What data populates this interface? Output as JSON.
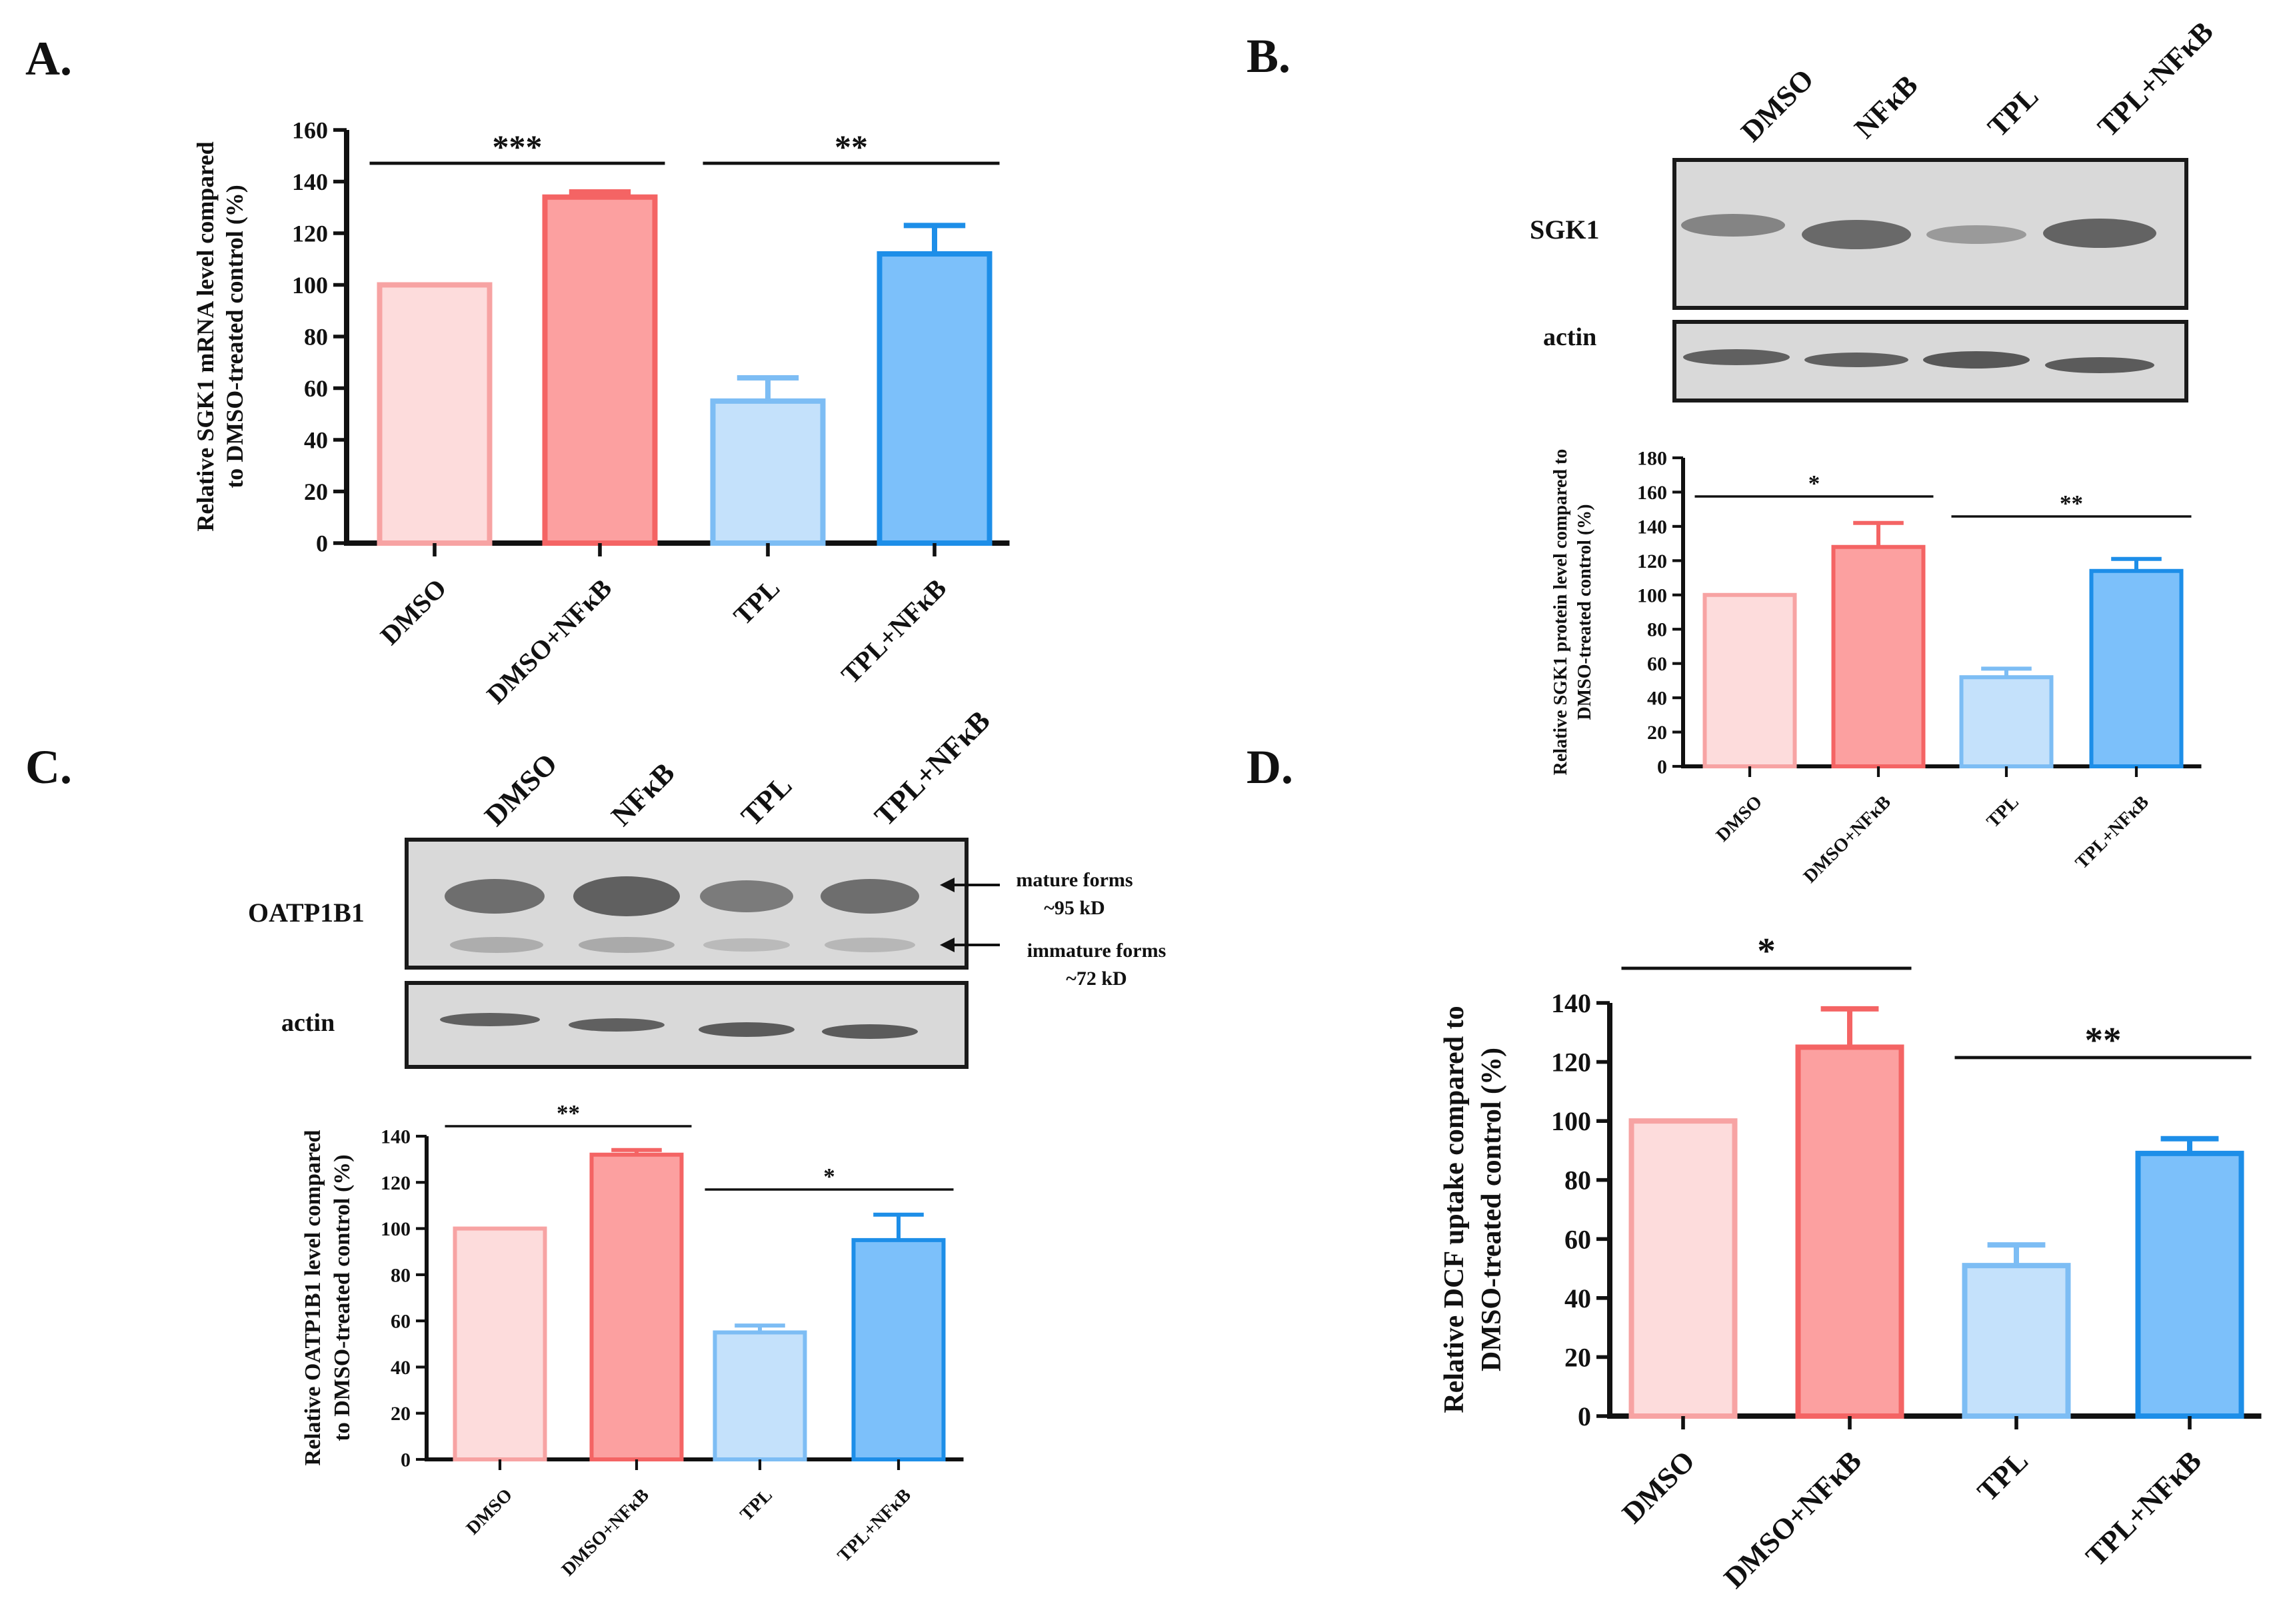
{
  "panels": {
    "A": {
      "letter": "A."
    },
    "B": {
      "letter": "B."
    },
    "C": {
      "letter": "C."
    },
    "D": {
      "letter": "D."
    }
  },
  "blots": {
    "B": {
      "lanes": [
        "DMSO",
        "NFκB",
        "TPL",
        "TPL+NFκB"
      ],
      "rows": [
        "SGK1",
        "actin"
      ]
    },
    "C": {
      "lanes": [
        "DMSO",
        "NFκB",
        "TPL",
        "TPL+NFκB"
      ],
      "rows": [
        "OATP1B1",
        "actin"
      ],
      "annotations": {
        "mature_line1": "mature forms",
        "mature_line2": "~95 kD",
        "immature_line1": "immature forms",
        "immature_line2": "~72 kD"
      }
    }
  },
  "colors": {
    "dmso_fill": "#fddcdc",
    "dmso_edge": "#f7a3a3",
    "nfkb_fill": "#fca0a0",
    "nfkb_edge": "#f46464",
    "tpl_fill": "#c4e1fb",
    "tpl_edge": "#7dbdf4",
    "tplnfkb_fill": "#7cc0fa",
    "tplnfkb_edge": "#1d8ee8"
  },
  "chart_data": [
    {
      "id": "A",
      "type": "bar",
      "categories": [
        "DMSO",
        "DMSO+NFκB",
        "TPL",
        "TPL+NFκB"
      ],
      "values": [
        100,
        134,
        55,
        112
      ],
      "errors": [
        0,
        2,
        9,
        11
      ],
      "ylabel_line1": "Relative SGK1 mRNA level compared",
      "ylabel_line2": "to DMSO-treated control (%)",
      "ylim": [
        0,
        160
      ],
      "yticks": [
        0,
        20,
        40,
        60,
        80,
        100,
        120,
        140,
        160
      ],
      "significance": [
        {
          "from": 0,
          "to": 1,
          "label": "***"
        },
        {
          "from": 2,
          "to": 3,
          "label": "**"
        }
      ]
    },
    {
      "id": "B",
      "type": "bar",
      "categories": [
        "DMSO",
        "DMSO+NFκB",
        "TPL",
        "TPL+NFκB"
      ],
      "values": [
        100,
        128,
        52,
        114
      ],
      "errors": [
        0,
        14,
        5,
        7
      ],
      "ylabel_line1": "Relative SGK1 protein level compared to",
      "ylabel_line2": "DMSO-treated control (%)",
      "ylim": [
        0,
        180
      ],
      "yticks": [
        0,
        20,
        40,
        60,
        80,
        100,
        120,
        140,
        160,
        180
      ],
      "significance": [
        {
          "from": 0,
          "to": 1,
          "label": "*"
        },
        {
          "from": 2,
          "to": 3,
          "label": "**"
        }
      ]
    },
    {
      "id": "C",
      "type": "bar",
      "categories": [
        "DMSO",
        "DMSO+NFκB",
        "TPL",
        "TPL+NFκB"
      ],
      "values": [
        100,
        132,
        55,
        95
      ],
      "errors": [
        0,
        2,
        3,
        11
      ],
      "ylabel_line1": "Relative OATP1B1 level compared",
      "ylabel_line2": "to DMSO-treated control (%)",
      "ylim": [
        0,
        140
      ],
      "yticks": [
        0,
        20,
        40,
        60,
        80,
        100,
        120,
        140
      ],
      "significance": [
        {
          "from": 0,
          "to": 1,
          "label": "**"
        },
        {
          "from": 2,
          "to": 3,
          "label": "*"
        }
      ]
    },
    {
      "id": "D",
      "type": "bar",
      "categories": [
        "DMSO",
        "DMSO+NFκB",
        "TPL",
        "TPL+NFκB"
      ],
      "values": [
        100,
        125,
        51,
        89
      ],
      "errors": [
        0,
        13,
        7,
        5
      ],
      "ylabel_line1": "Relative DCF uptake compared to",
      "ylabel_line2": "DMSO-treated control (%)",
      "ylim": [
        0,
        140
      ],
      "yticks": [
        0,
        20,
        40,
        60,
        80,
        100,
        120,
        140
      ],
      "significance": [
        {
          "from": 0,
          "to": 1,
          "label": "*"
        },
        {
          "from": 2,
          "to": 3,
          "label": "**"
        }
      ]
    }
  ]
}
